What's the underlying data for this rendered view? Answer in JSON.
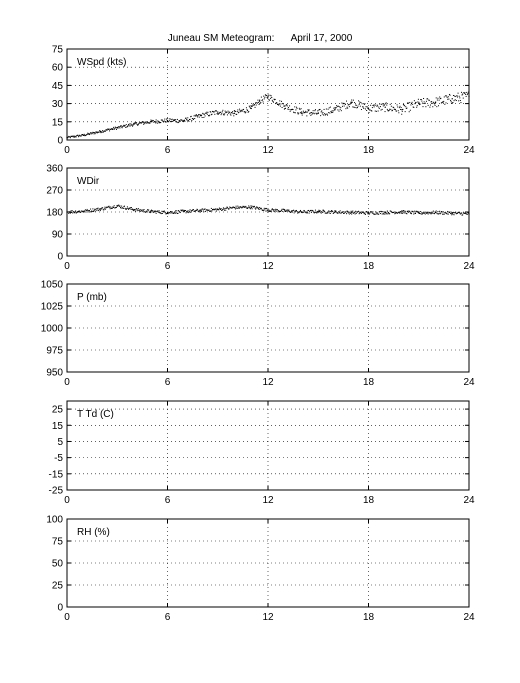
{
  "figure": {
    "title": "Juneau SM Meteogram:",
    "date": "April 17, 2000"
  },
  "chart_data": [
    {
      "type": "scatter",
      "label": "WSpd (kts)",
      "x_ticks": [
        0,
        6,
        12,
        18,
        24
      ],
      "xlim": [
        0,
        24
      ],
      "y_ticks": [
        0,
        15,
        30,
        45,
        60,
        75
      ],
      "ylim": [
        0,
        75
      ],
      "grid": true,
      "series": [
        {
          "x": [
            0,
            1,
            2,
            3,
            4,
            5,
            6,
            7,
            8,
            9,
            10,
            11,
            11.5,
            12,
            13,
            14,
            15,
            16,
            17,
            18,
            19,
            20,
            21,
            22,
            23,
            24
          ],
          "y": [
            2,
            4,
            7,
            10,
            13,
            15,
            16,
            16,
            20,
            23,
            22,
            26,
            32,
            36,
            28,
            23,
            22,
            25,
            31,
            26,
            27,
            25,
            30,
            31,
            34,
            36
          ]
        }
      ]
    },
    {
      "type": "scatter",
      "label": "WDir",
      "x_ticks": [
        0,
        6,
        12,
        18,
        24
      ],
      "xlim": [
        0,
        24
      ],
      "y_ticks": [
        0,
        90,
        180,
        270,
        360
      ],
      "ylim": [
        0,
        360
      ],
      "grid": true,
      "series": [
        {
          "x": [
            0,
            1,
            2,
            3,
            4,
            5,
            6,
            7,
            8,
            9,
            10,
            11,
            12,
            13,
            14,
            15,
            16,
            17,
            18,
            19,
            20,
            21,
            22,
            23,
            24
          ],
          "y": [
            180,
            183,
            192,
            205,
            190,
            182,
            178,
            182,
            186,
            190,
            198,
            200,
            188,
            185,
            180,
            182,
            180,
            178,
            176,
            178,
            180,
            176,
            178,
            175,
            172
          ]
        }
      ]
    },
    {
      "type": "scatter",
      "label": "P (mb)",
      "x_ticks": [
        0,
        6,
        12,
        18,
        24
      ],
      "xlim": [
        0,
        24
      ],
      "y_ticks": [
        950,
        975,
        1000,
        1025,
        1050
      ],
      "ylim": [
        950,
        1050
      ],
      "grid": true,
      "series": []
    },
    {
      "type": "scatter",
      "label": "T Td (C)",
      "x_ticks": [
        0,
        6,
        12,
        18,
        24
      ],
      "xlim": [
        0,
        24
      ],
      "y_ticks": [
        -25,
        -15,
        -5,
        5,
        15,
        25
      ],
      "ylim": [
        -25,
        30
      ],
      "grid": true,
      "series": []
    },
    {
      "type": "scatter",
      "label": "RH (%)",
      "x_ticks": [
        0,
        6,
        12,
        18,
        24
      ],
      "xlim": [
        0,
        24
      ],
      "y_ticks": [
        0,
        25,
        50,
        75,
        100
      ],
      "ylim": [
        0,
        100
      ],
      "grid": true,
      "series": []
    }
  ]
}
